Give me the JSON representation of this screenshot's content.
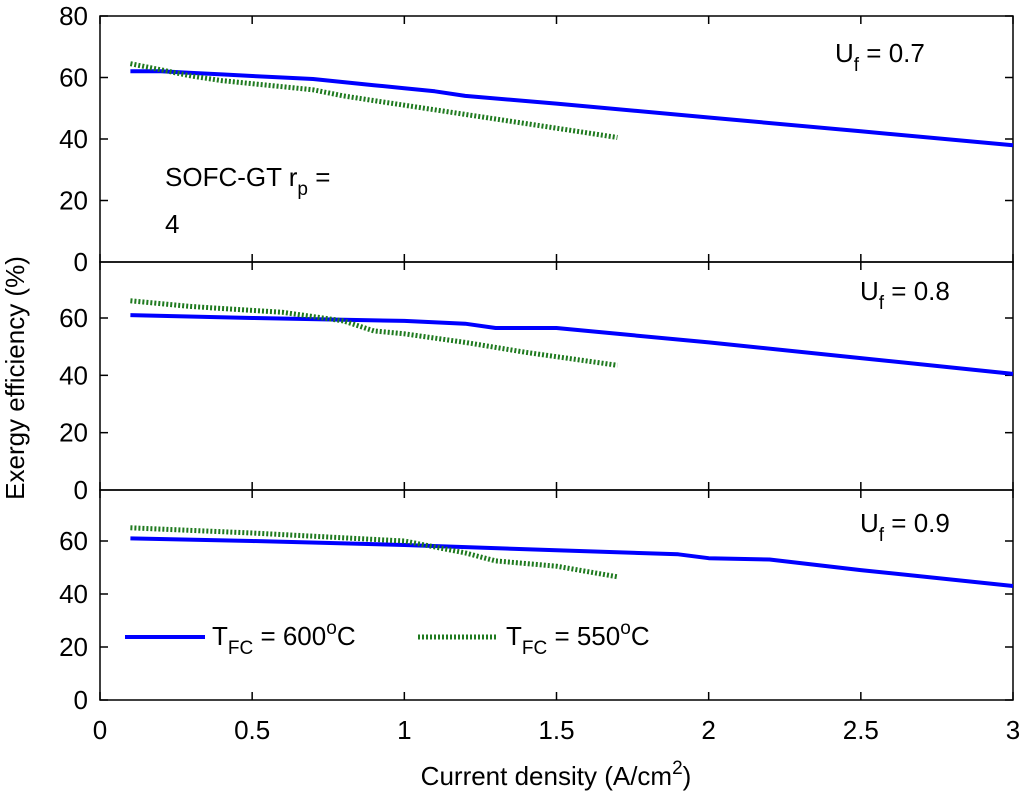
{
  "chart_data": {
    "type": "line",
    "xlabel_main": "Current density (A/cm",
    "xlabel_sup": "2",
    "xlabel_end": ")",
    "ylabel": "Exergy efficiency (%)",
    "xlim": [
      0,
      3
    ],
    "x_ticks": [
      "0",
      "0.5",
      "1",
      "1.5",
      "2",
      "2.5",
      "3"
    ],
    "colors": {
      "T600": "#0000ff",
      "T550": "#1f7a1f"
    },
    "legend": {
      "t600": {
        "prefix": "T",
        "sub": "FC",
        "mid": " = 600",
        "sup": "o",
        "end": "C"
      },
      "t550": {
        "prefix": "T",
        "sub": "FC",
        "mid": " = 550",
        "sup": "o",
        "end": "C"
      }
    },
    "annotation": {
      "line1_main": "SOFC-GT r",
      "line1_sub": "p",
      "line1_end": " =",
      "line2": "4"
    },
    "panels": [
      {
        "uf_main": "U",
        "uf_sub": "f",
        "uf_value": " = 0.7",
        "ylim": [
          0,
          80
        ],
        "y_ticks": [
          "0",
          "20",
          "40",
          "60",
          "80"
        ],
        "series": [
          {
            "name": "T_FC = 600oC",
            "key": "T600",
            "x": [
              0.1,
              0.2,
              0.3,
              0.4,
              0.5,
              0.6,
              0.7,
              0.8,
              0.9,
              1.0,
              1.1,
              1.2,
              1.5,
              2.0,
              2.5,
              3.0
            ],
            "y": [
              62,
              62,
              61.5,
              61,
              60.5,
              60,
              59.5,
              58.5,
              57.5,
              56.5,
              55.5,
              54,
              51.5,
              47,
              42.5,
              38
            ]
          },
          {
            "name": "T_FC = 550oC",
            "key": "T550",
            "x": [
              0.1,
              0.2,
              0.3,
              0.4,
              0.5,
              0.6,
              0.7,
              0.8,
              0.9,
              1.0,
              1.1,
              1.2,
              1.3,
              1.4,
              1.5,
              1.6,
              1.7
            ],
            "y": [
              64.5,
              62.5,
              60.5,
              59,
              58,
              57,
              56,
              54,
              52.5,
              51,
              49.5,
              48,
              46.5,
              45,
              43.5,
              42,
              40.5
            ]
          }
        ]
      },
      {
        "uf_main": "U",
        "uf_sub": "f",
        "uf_value": " = 0.8",
        "ylim": [
          0,
          80
        ],
        "y_ticks": [
          "0",
          "20",
          "40",
          "60"
        ],
        "series": [
          {
            "name": "T_FC = 600oC",
            "key": "T600",
            "x": [
              0.1,
              0.5,
              1.0,
              1.2,
              1.3,
              1.5,
              1.7,
              2.0,
              2.5,
              3.0
            ],
            "y": [
              61,
              60,
              59,
              58,
              56.5,
              56.5,
              54.5,
              51.5,
              46,
              40.5
            ]
          },
          {
            "name": "T_FC = 550oC",
            "key": "T550",
            "x": [
              0.1,
              0.3,
              0.6,
              0.8,
              0.9,
              1.0,
              1.2,
              1.4,
              1.7
            ],
            "y": [
              66,
              64,
              62,
              59,
              55.5,
              54.5,
              51.5,
              48,
              43.5
            ]
          }
        ]
      },
      {
        "uf_main": "U",
        "uf_sub": "f",
        "uf_value": " = 0.9",
        "ylim": [
          0,
          80
        ],
        "y_ticks": [
          "0",
          "20",
          "40",
          "60"
        ],
        "series": [
          {
            "name": "T_FC = 600oC",
            "key": "T600",
            "x": [
              0.1,
              0.5,
              1.0,
              1.5,
              1.9,
              2.0,
              2.2,
              2.5,
              3.0
            ],
            "y": [
              61,
              60,
              58.5,
              56.5,
              55,
              53.5,
              53,
              49,
              43
            ]
          },
          {
            "name": "T_FC = 550oC",
            "key": "T550",
            "x": [
              0.1,
              0.5,
              1.0,
              1.2,
              1.3,
              1.5,
              1.7
            ],
            "y": [
              65,
              63,
              60,
              55.5,
              52.5,
              50.5,
              46.5
            ]
          }
        ]
      }
    ]
  }
}
